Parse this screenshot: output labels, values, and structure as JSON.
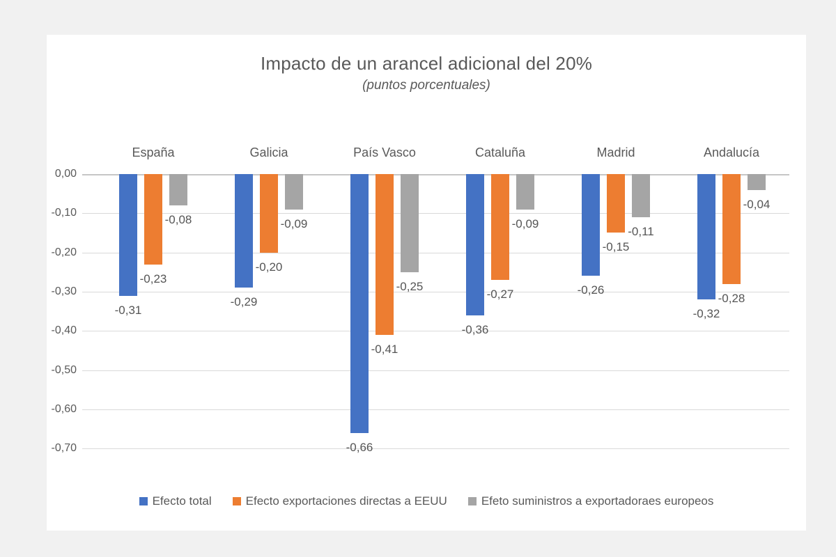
{
  "chart_data": {
    "type": "bar",
    "title": "Impacto de un arancel adicional del 20%",
    "subtitle": "(puntos porcentuales)",
    "categories": [
      "España",
      "Galicia",
      "País Vasco",
      "Cataluña",
      "Madrid",
      "Andalucía"
    ],
    "series": [
      {
        "name": "Efecto total",
        "color": "#4472C4",
        "values": [
          -0.31,
          -0.29,
          -0.66,
          -0.36,
          -0.26,
          -0.32
        ]
      },
      {
        "name": "Efecto exportaciones directas a EEUU",
        "color": "#ED7D31",
        "values": [
          -0.23,
          -0.2,
          -0.41,
          -0.27,
          -0.15,
          -0.28
        ]
      },
      {
        "name": "Efeto suministros a exportadoraes europeos",
        "color": "#A5A5A5",
        "values": [
          -0.08,
          -0.09,
          -0.25,
          -0.09,
          -0.11,
          -0.04
        ]
      }
    ],
    "y_axis": {
      "tick_labels": [
        "0,00",
        "-0,10",
        "-0,20",
        "-0,30",
        "-0,40",
        "-0,50",
        "-0,60",
        "-0,70"
      ],
      "min": -0.7,
      "max": 0.0,
      "tick_step": 0.1
    },
    "grid": true,
    "legend_position": "bottom",
    "number_format": "comma-decimal-2dp"
  },
  "colors": {
    "page_background": "#f1f1f1",
    "card_background": "#ffffff",
    "gridline": "#d9d9d9",
    "zero_line": "#c6c6c6",
    "text": "#595959"
  }
}
